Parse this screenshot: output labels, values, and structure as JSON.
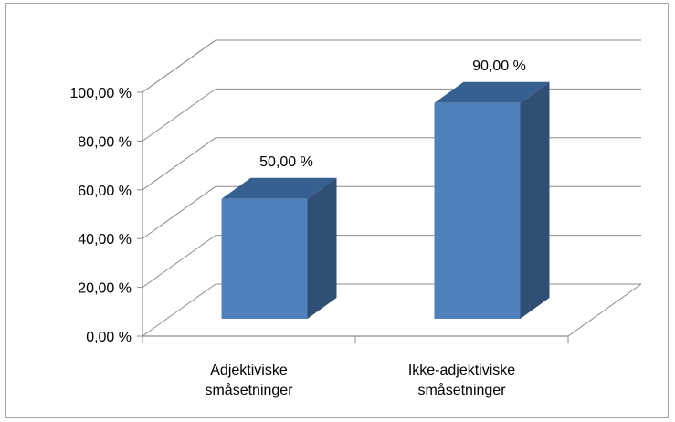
{
  "chart_data": {
    "type": "bar",
    "categories": [
      [
        "Adjektiviske",
        "småsetninger"
      ],
      [
        "Ikke-adjektiviske",
        "småsetninger"
      ]
    ],
    "values": [
      50.0,
      90.0
    ],
    "value_labels": [
      "50,00 %",
      "90,00 %"
    ],
    "y_ticks": [
      "0,00 %",
      "20,00 %",
      "40,00 %",
      "60,00 %",
      "80,00 %",
      "100,00 %"
    ],
    "ylim": [
      0,
      100
    ],
    "title": "",
    "xlabel": "",
    "ylabel": "",
    "grid": true,
    "style": "3d-column",
    "colors": {
      "front": "#4f81bd",
      "side": "#2f4f75",
      "top": "#36608f",
      "grid": "#8c8c8c",
      "axis": "#8c8c8c"
    }
  }
}
